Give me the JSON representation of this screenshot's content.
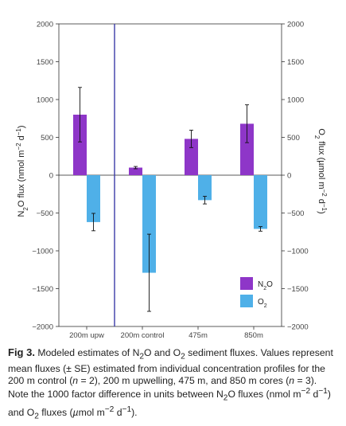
{
  "chart_data": {
    "type": "bar",
    "categories": [
      "200m upw",
      "200m control",
      "475m",
      "850m"
    ],
    "series": [
      {
        "name": "N2O",
        "color": "#8e36c8",
        "values": [
          800,
          100,
          480,
          680
        ],
        "errors": [
          360,
          15,
          115,
          250
        ]
      },
      {
        "name": "O2",
        "color": "#4fb0e8",
        "values": [
          -620,
          -1290,
          -330,
          -710
        ],
        "errors": [
          115,
          510,
          50,
          30
        ]
      }
    ],
    "ylim": [
      -2000,
      2000
    ],
    "y_ticks": [
      "2000",
      "1500",
      "1000",
      "500",
      "0",
      "−500",
      "−1000",
      "−1500",
      "−2000"
    ],
    "y_tick_values": [
      2000,
      1500,
      1000,
      500,
      0,
      -500,
      -1000,
      -1500,
      -2000
    ],
    "ylabel_left": {
      "base": "N",
      "sub1": "2",
      "mid": "O flux (nmol m",
      "sup1": "−2",
      "mid2": " d",
      "sup2": "−1",
      "end": ")"
    },
    "ylabel_right": {
      "base": "O",
      "sub1": "2",
      "mid": " flux (µmol m",
      "sup1": "−2",
      "mid2": " d",
      "sup2": "−1",
      "end": ")"
    },
    "legend": [
      {
        "base": "N",
        "sub": "2",
        "rest": "O"
      },
      {
        "base": "O",
        "sub": "2",
        "rest": ""
      }
    ],
    "legend_position": "bottom-right",
    "divider_after_category": 0,
    "divider_color": "#3b3ba8",
    "grid": false
  },
  "caption": {
    "label": "Fig 3.",
    "text_parts": [
      " Modeled estimates of N",
      "2",
      "O and O",
      "2",
      " sediment fluxes. Values represent mean fluxes (± SE) estimated from individual concentration profiles for the 200 m control (",
      "n",
      " = 2), 200 m upwelling, 475 m, and 850 m cores (",
      "n",
      " = 3). Note the 1000 factor difference in units between N",
      "2",
      "O fluxes (nmol m",
      "−2",
      " d",
      "−1",
      ") and O",
      "2",
      " fluxes (",
      "µ",
      "mol m",
      "−2",
      " d",
      "−1",
      ")."
    ]
  }
}
